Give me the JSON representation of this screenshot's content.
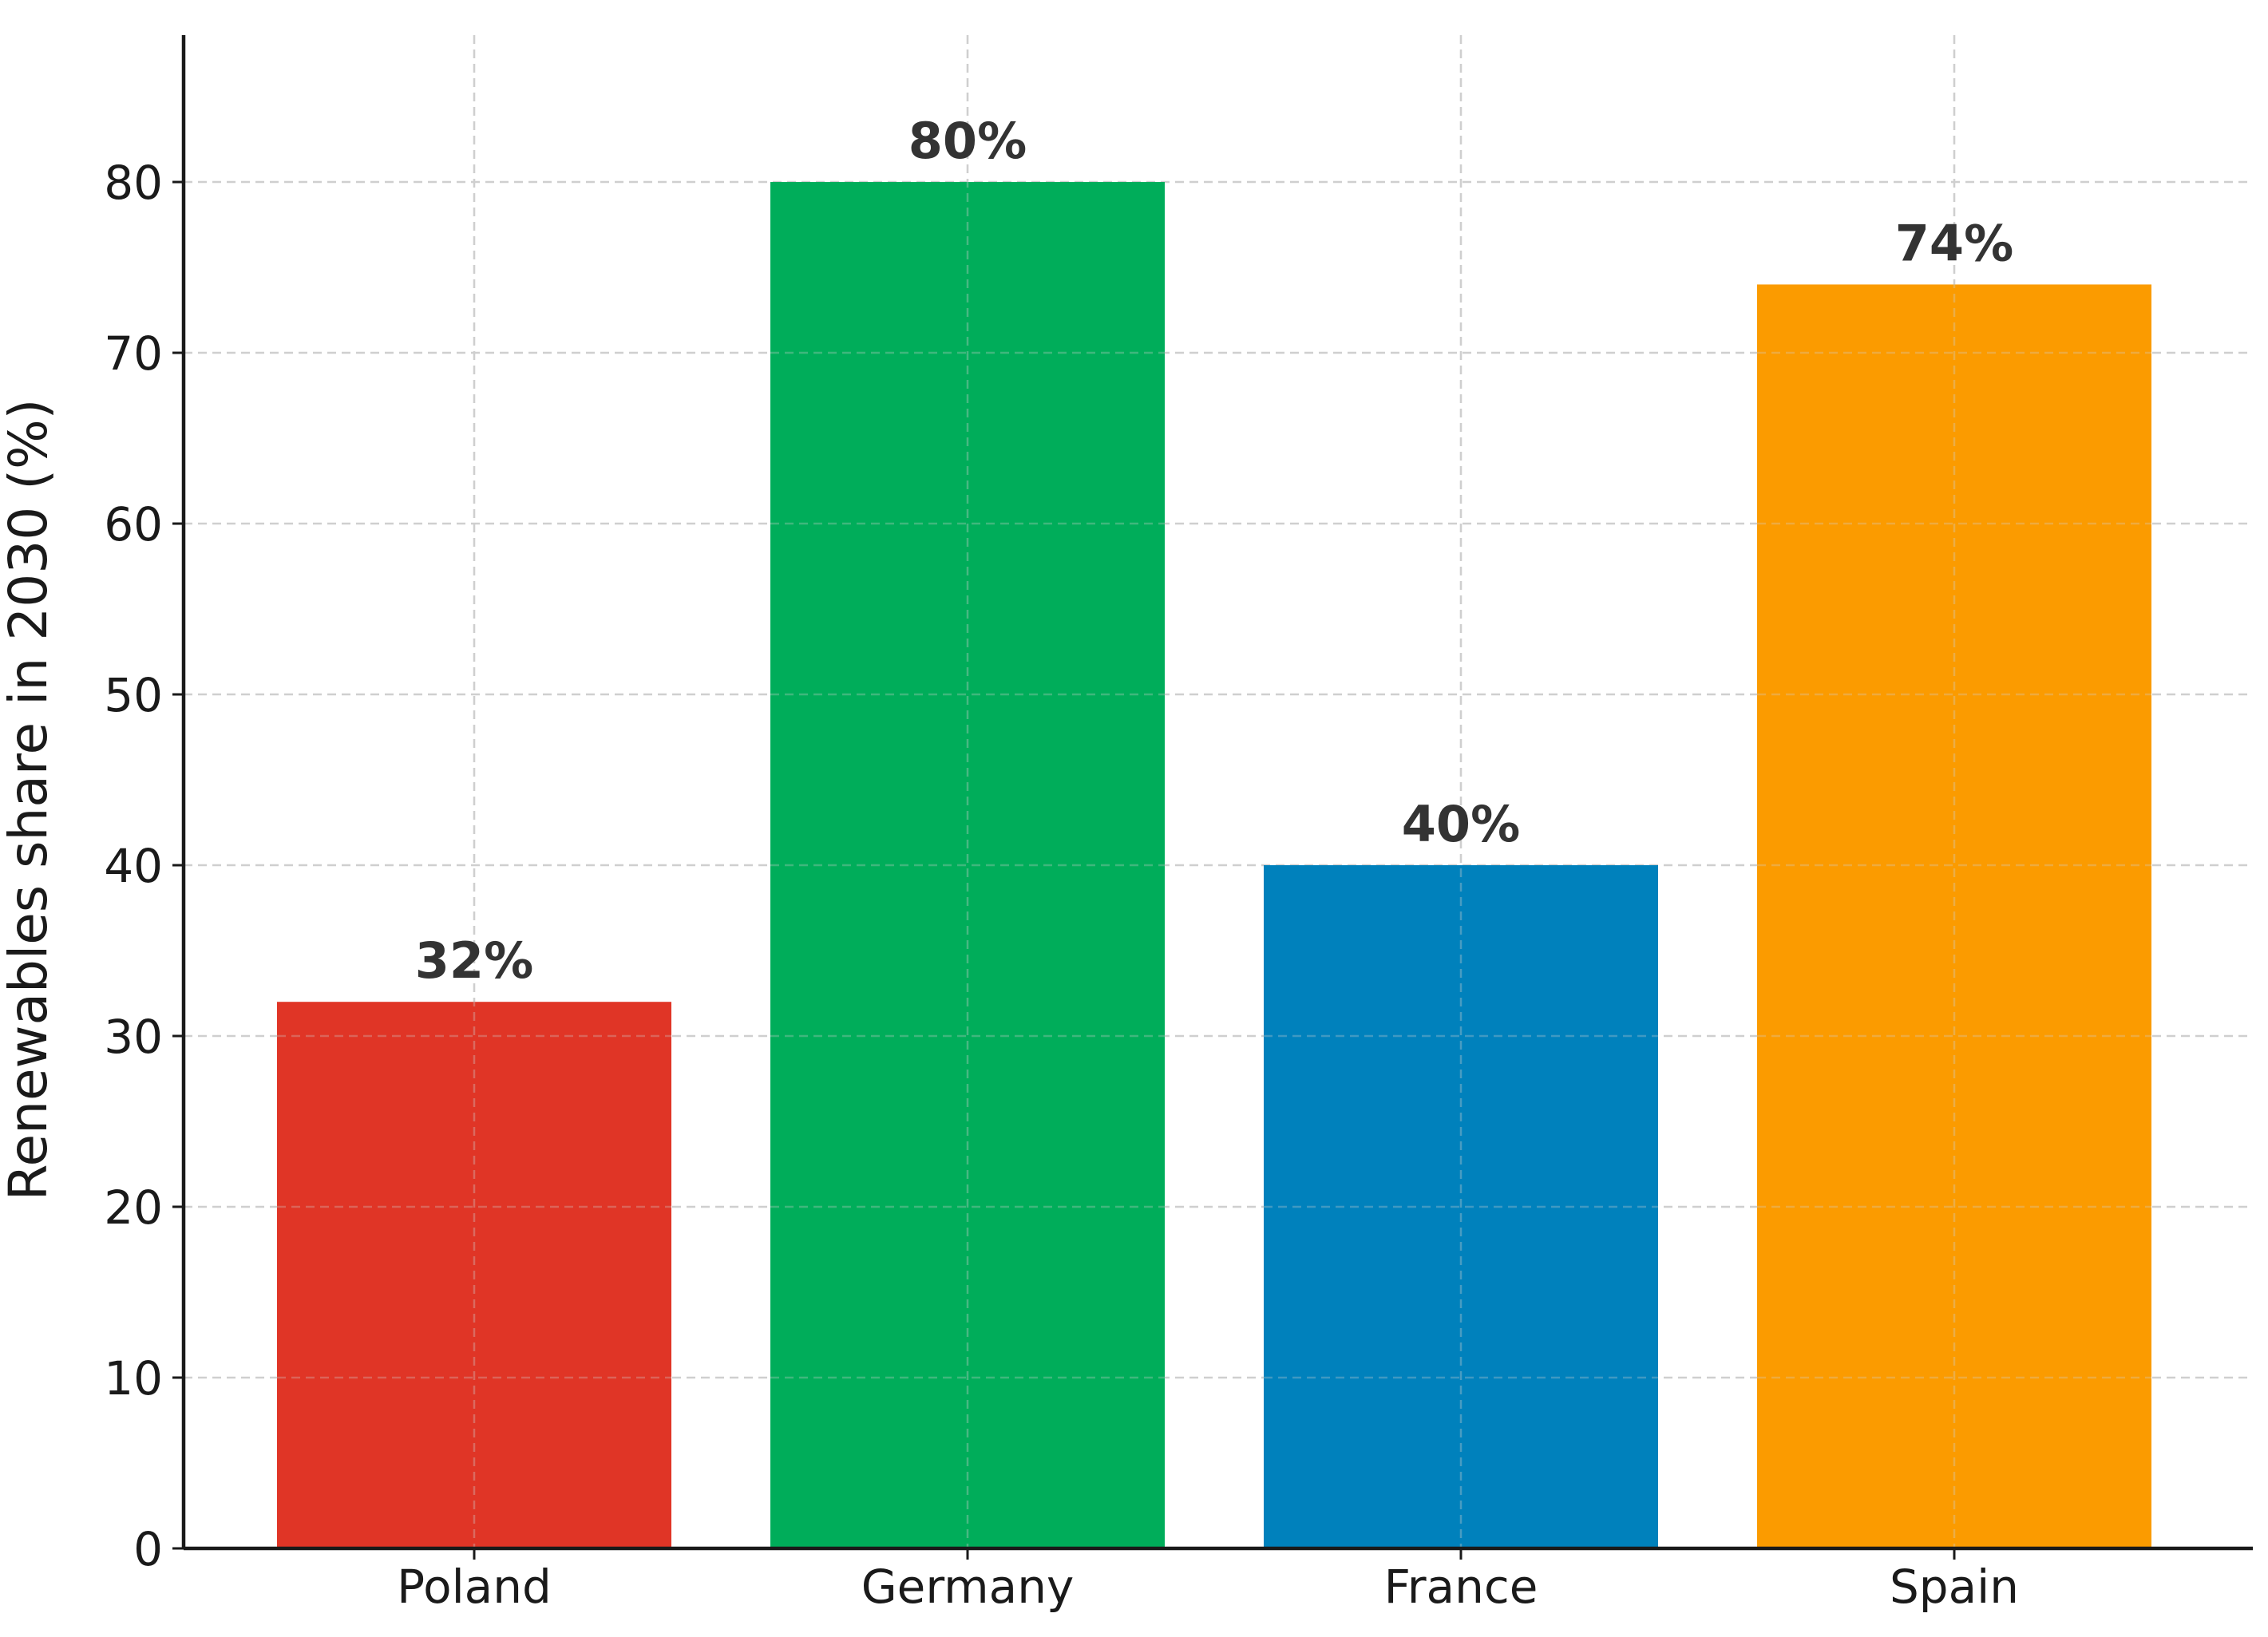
{
  "chart_data": {
    "type": "bar",
    "categories": [
      "Poland",
      "Germany",
      "France",
      "Spain"
    ],
    "values": [
      32,
      80,
      40,
      74
    ],
    "data_labels": [
      "32%",
      "80%",
      "40%",
      "74%"
    ],
    "colors": [
      "#e03526",
      "#00ad5a",
      "#0081bc",
      "#fb9b00"
    ],
    "title": "",
    "xlabel": "",
    "ylabel": "Renewables share in 2030 (%)",
    "ylim": [
      0,
      88.6
    ],
    "yticks": [
      0,
      10,
      20,
      30,
      40,
      50,
      60,
      70,
      80
    ],
    "grid": true,
    "grid_style": "dashed"
  }
}
